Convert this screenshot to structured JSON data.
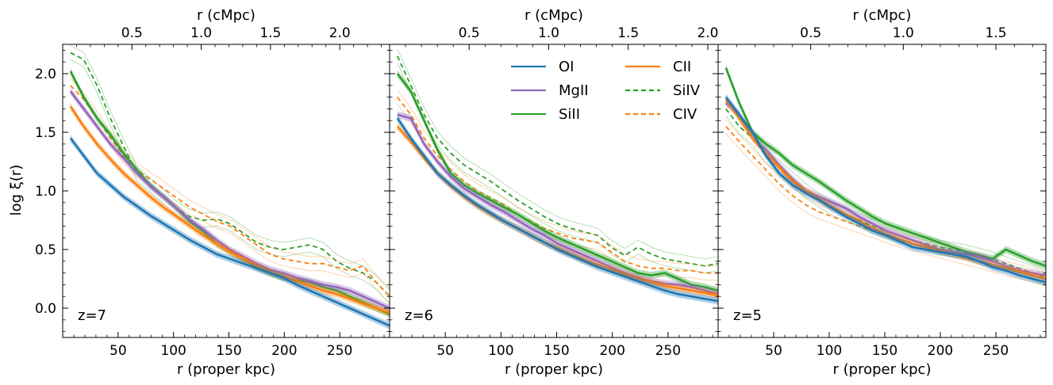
{
  "chart_data": {
    "type": "line",
    "ylabel": "log ξ(r)",
    "xlabel_bottom": "r (proper kpc)",
    "xlabel_top": "r (cMpc)",
    "ylim": [
      -0.25,
      2.25
    ],
    "yticks": [
      0.0,
      0.5,
      1.0,
      1.5,
      2.0
    ],
    "ytick_labels": [
      "0.0",
      "0.5",
      "1.0",
      "1.5",
      "2.0"
    ],
    "legend": [
      {
        "key": "OI",
        "name": "OI",
        "color": "#1f77b4",
        "dash": false
      },
      {
        "key": "MgII",
        "name": "MgII",
        "color": "#9467bd",
        "dash": false
      },
      {
        "key": "SiII",
        "name": "SiII",
        "color": "#2ca02c",
        "dash": false
      },
      {
        "key": "CII",
        "name": "CII",
        "color": "#ff7f0e",
        "dash": false
      },
      {
        "key": "SiIV",
        "name": "SiIV",
        "color": "#2ca02c",
        "dash": true
      },
      {
        "key": "CIV",
        "name": "CIV",
        "color": "#ff7f0e",
        "dash": true
      }
    ],
    "panels": [
      {
        "label": "z=7",
        "xlim": [
          0,
          295
        ],
        "xticks": [
          50,
          100,
          150,
          200,
          250
        ],
        "xtick_labels": [
          "50",
          "100",
          "150",
          "200",
          "250"
        ],
        "cmpc_per_kpc": 0.008,
        "top_ticks": [
          0.5,
          1.0,
          1.5,
          2.0
        ],
        "top_tick_labels": [
          "0.5",
          "1.0",
          "1.5",
          "2.0"
        ],
        "x": [
          7,
          19,
          31,
          43,
          55,
          67,
          79,
          91,
          103,
          115,
          127,
          139,
          151,
          163,
          175,
          187,
          199,
          211,
          223,
          235,
          247,
          259,
          271,
          283,
          295
        ],
        "series": {
          "OI": [
            1.45,
            1.3,
            1.15,
            1.05,
            0.95,
            0.87,
            0.79,
            0.72,
            0.65,
            0.58,
            0.52,
            0.46,
            0.42,
            0.38,
            0.34,
            0.3,
            0.26,
            0.2,
            0.15,
            0.1,
            0.05,
            0.0,
            -0.05,
            -0.1,
            -0.15
          ],
          "MgII": [
            1.85,
            1.7,
            1.55,
            1.4,
            1.28,
            1.15,
            1.04,
            0.95,
            0.85,
            0.75,
            0.67,
            0.58,
            0.5,
            0.44,
            0.38,
            0.33,
            0.3,
            0.26,
            0.23,
            0.2,
            0.18,
            0.15,
            0.1,
            0.05,
            0.0
          ],
          "SiII": [
            2.02,
            1.8,
            1.62,
            1.48,
            1.32,
            1.18,
            1.05,
            0.95,
            0.85,
            0.74,
            0.65,
            0.55,
            0.48,
            0.42,
            0.35,
            0.3,
            0.26,
            0.24,
            0.22,
            0.18,
            0.15,
            0.1,
            0.05,
            0.0,
            -0.05
          ],
          "CII": [
            1.72,
            1.55,
            1.4,
            1.27,
            1.15,
            1.05,
            0.95,
            0.86,
            0.78,
            0.7,
            0.62,
            0.55,
            0.48,
            0.42,
            0.36,
            0.31,
            0.27,
            0.23,
            0.19,
            0.15,
            0.12,
            0.08,
            0.04,
            0.0,
            -0.04
          ],
          "SiIV": [
            2.18,
            2.12,
            1.9,
            1.62,
            1.38,
            1.15,
            1.05,
            0.95,
            0.85,
            0.78,
            0.75,
            0.76,
            0.72,
            0.64,
            0.56,
            0.52,
            0.5,
            0.52,
            0.54,
            0.5,
            0.4,
            0.34,
            0.3,
            0.22,
            0.1
          ],
          "CIV": [
            1.9,
            1.78,
            1.62,
            1.45,
            1.3,
            1.18,
            1.1,
            1.02,
            0.94,
            0.86,
            0.8,
            0.74,
            0.7,
            0.62,
            0.54,
            0.46,
            0.42,
            0.4,
            0.38,
            0.38,
            0.35,
            0.32,
            0.36,
            0.22,
            0.1
          ]
        }
      },
      {
        "label": "z=6",
        "xlim": [
          0,
          295
        ],
        "xticks": [
          50,
          100,
          150,
          200,
          250
        ],
        "xtick_labels": [
          "50",
          "100",
          "150",
          "200",
          "250"
        ],
        "cmpc_per_kpc": 0.007,
        "top_ticks": [
          0.5,
          1.0,
          1.5,
          2.0
        ],
        "top_tick_labels": [
          "0.5",
          "1.0",
          "1.5",
          "2.0"
        ],
        "x": [
          7,
          19,
          31,
          43,
          55,
          67,
          79,
          91,
          103,
          115,
          127,
          139,
          151,
          163,
          175,
          187,
          199,
          211,
          223,
          235,
          247,
          259,
          271,
          283,
          295
        ],
        "series": {
          "OI": [
            1.62,
            1.45,
            1.3,
            1.15,
            1.05,
            0.96,
            0.88,
            0.81,
            0.74,
            0.68,
            0.62,
            0.56,
            0.5,
            0.45,
            0.4,
            0.35,
            0.31,
            0.27,
            0.23,
            0.19,
            0.15,
            0.12,
            0.1,
            0.08,
            0.06
          ],
          "MgII": [
            1.65,
            1.62,
            1.4,
            1.25,
            1.12,
            1.02,
            0.95,
            0.88,
            0.82,
            0.75,
            0.68,
            0.62,
            0.55,
            0.5,
            0.45,
            0.4,
            0.35,
            0.3,
            0.26,
            0.23,
            0.21,
            0.2,
            0.18,
            0.15,
            0.12
          ],
          "SiII": [
            2.0,
            1.85,
            1.6,
            1.35,
            1.15,
            1.05,
            0.98,
            0.92,
            0.86,
            0.8,
            0.73,
            0.66,
            0.6,
            0.55,
            0.5,
            0.45,
            0.4,
            0.35,
            0.3,
            0.28,
            0.3,
            0.25,
            0.2,
            0.18,
            0.15
          ],
          "CII": [
            1.55,
            1.42,
            1.28,
            1.15,
            1.04,
            0.95,
            0.87,
            0.8,
            0.74,
            0.68,
            0.62,
            0.56,
            0.51,
            0.46,
            0.41,
            0.37,
            0.33,
            0.29,
            0.25,
            0.22,
            0.19,
            0.17,
            0.15,
            0.13,
            0.11
          ],
          "SiIV": [
            2.15,
            1.9,
            1.65,
            1.45,
            1.32,
            1.22,
            1.15,
            1.08,
            1.0,
            0.92,
            0.85,
            0.78,
            0.72,
            0.68,
            0.65,
            0.62,
            0.52,
            0.45,
            0.52,
            0.46,
            0.42,
            0.4,
            0.38,
            0.36,
            0.38
          ],
          "CIV": [
            1.8,
            1.65,
            1.45,
            1.3,
            1.18,
            1.08,
            1.0,
            0.94,
            0.88,
            0.8,
            0.74,
            0.68,
            0.64,
            0.6,
            0.58,
            0.56,
            0.48,
            0.4,
            0.36,
            0.34,
            0.34,
            0.32,
            0.32,
            0.3,
            0.3
          ]
        }
      },
      {
        "label": "z=5",
        "xlim": [
          0,
          295
        ],
        "xticks": [
          50,
          100,
          150,
          200,
          250
        ],
        "xtick_labels": [
          "50",
          "100",
          "150",
          "200",
          "250"
        ],
        "cmpc_per_kpc": 0.006,
        "top_ticks": [
          0.5,
          1.0,
          1.5
        ],
        "top_tick_labels": [
          "0.5",
          "1.0",
          "1.5"
        ],
        "x": [
          7,
          19,
          31,
          43,
          55,
          67,
          79,
          91,
          103,
          115,
          127,
          139,
          151,
          163,
          175,
          187,
          199,
          211,
          223,
          235,
          247,
          259,
          271,
          283,
          295
        ],
        "series": {
          "OI": [
            1.8,
            1.65,
            1.5,
            1.3,
            1.15,
            1.05,
            0.98,
            0.92,
            0.85,
            0.78,
            0.72,
            0.66,
            0.62,
            0.57,
            0.52,
            0.5,
            0.48,
            0.46,
            0.44,
            0.4,
            0.35,
            0.32,
            0.28,
            0.25,
            0.22
          ],
          "MgII": [
            1.75,
            1.65,
            1.45,
            1.35,
            1.22,
            1.1,
            1.0,
            0.95,
            0.9,
            0.85,
            0.78,
            0.72,
            0.66,
            0.62,
            0.58,
            0.54,
            0.5,
            0.48,
            0.46,
            0.44,
            0.4,
            0.36,
            0.32,
            0.3,
            0.28
          ],
          "SiII": [
            2.05,
            1.75,
            1.5,
            1.4,
            1.32,
            1.22,
            1.15,
            1.08,
            1.0,
            0.92,
            0.85,
            0.78,
            0.72,
            0.68,
            0.64,
            0.6,
            0.56,
            0.52,
            0.48,
            0.45,
            0.42,
            0.5,
            0.45,
            0.4,
            0.36
          ],
          "CII": [
            1.78,
            1.62,
            1.45,
            1.32,
            1.2,
            1.08,
            1.0,
            0.93,
            0.86,
            0.8,
            0.74,
            0.68,
            0.63,
            0.59,
            0.55,
            0.52,
            0.49,
            0.46,
            0.43,
            0.4,
            0.37,
            0.34,
            0.31,
            0.28,
            0.25
          ],
          "SiIV": [
            1.7,
            1.55,
            1.45,
            1.3,
            1.2,
            1.1,
            1.0,
            0.92,
            0.85,
            0.8,
            0.75,
            0.7,
            0.66,
            0.62,
            0.58,
            0.55,
            0.52,
            0.5,
            0.48,
            0.45,
            0.42,
            0.38,
            0.34,
            0.3,
            0.26
          ],
          "CIV": [
            1.55,
            1.42,
            1.3,
            1.18,
            1.06,
            0.96,
            0.88,
            0.82,
            0.78,
            0.74,
            0.7,
            0.66,
            0.62,
            0.58,
            0.55,
            0.52,
            0.49,
            0.46,
            0.43,
            0.4,
            0.37,
            0.34,
            0.31,
            0.28,
            0.25
          ]
        }
      }
    ]
  }
}
